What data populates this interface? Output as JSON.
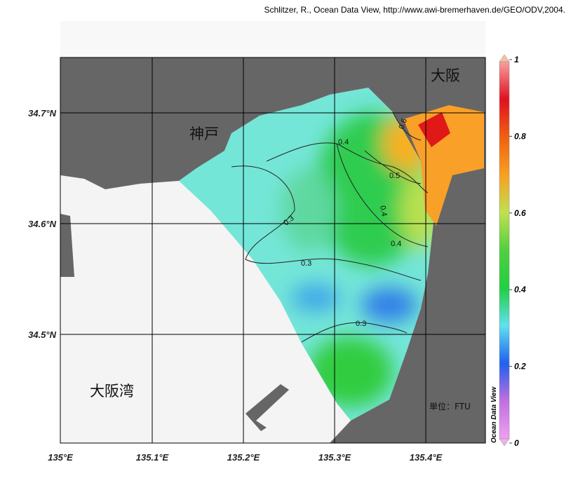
{
  "credit": "Schlitzer, R., Ocean Data View, http://www.awi-bremerhaven.de/GEO/ODV,2004.",
  "map": {
    "x_tick_labels": [
      "135°E",
      "135.1°E",
      "135.2°E",
      "135.3°E",
      "135.4°E"
    ],
    "y_tick_labels": [
      "34.7°N",
      "34.6°N",
      "34.5°N"
    ],
    "place_labels": [
      "神戸",
      "大阪",
      "大阪湾"
    ],
    "unit_label": "単位：FTU",
    "contour_labels": [
      0.6,
      0.4,
      0.5,
      0.4,
      0.3,
      0.4,
      0.3,
      0.3
    ]
  },
  "colorbar": {
    "title": "Ocean Data View",
    "lim": [
      0,
      1
    ],
    "ticks": [
      0,
      0.2,
      0.4,
      0.6,
      0.8,
      1
    ]
  }
}
